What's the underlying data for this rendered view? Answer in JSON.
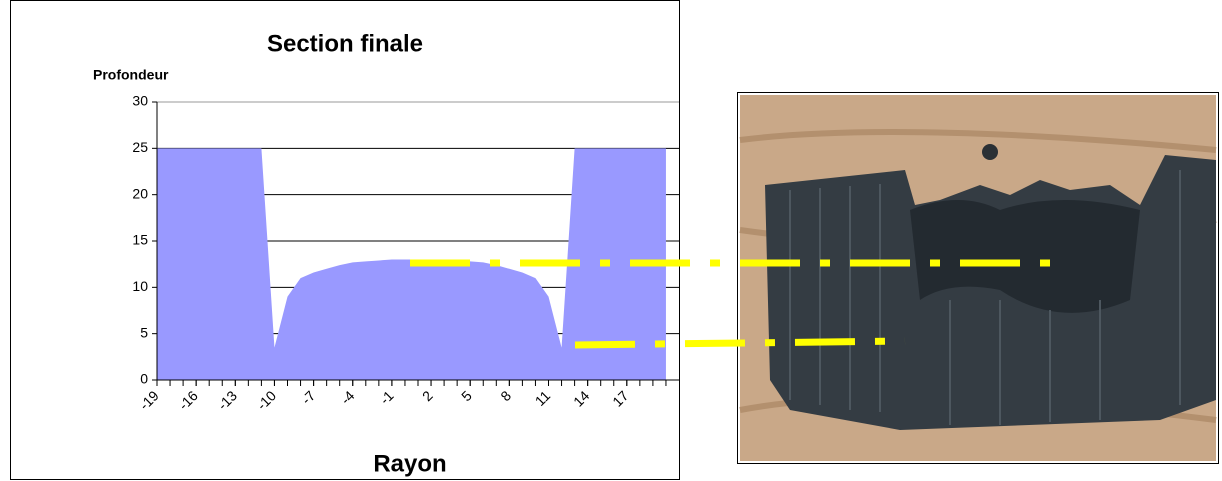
{
  "chart_data": {
    "type": "area",
    "title": "Section finale",
    "y_label": "Profondeur",
    "x_label": "Rayon",
    "x": [
      -19,
      -18,
      -17,
      -16,
      -15,
      -14,
      -13,
      -12,
      -11,
      -10,
      -9,
      -8,
      -7,
      -6,
      -5,
      -4,
      -3,
      -2,
      -1,
      0,
      1,
      2,
      3,
      4,
      5,
      6,
      7,
      8,
      9,
      10,
      11,
      12,
      13,
      14,
      15,
      16,
      17,
      18,
      19,
      20
    ],
    "values": [
      25,
      25,
      25,
      25,
      25,
      25,
      25,
      25,
      25,
      3.5,
      9,
      11,
      11.6,
      12,
      12.4,
      12.7,
      12.8,
      12.9,
      13,
      13,
      13,
      13,
      13,
      12.9,
      12.8,
      12.7,
      12.4,
      12,
      11.6,
      11,
      9,
      3.5,
      25,
      25,
      25,
      25,
      25,
      25,
      25,
      25
    ],
    "color": "#9999ff",
    "xlim": [
      -19,
      21
    ],
    "xticks": [
      -19,
      -16,
      -13,
      -10,
      -7,
      -4,
      -1,
      2,
      5,
      8,
      11,
      14,
      17
    ],
    "ylim": [
      0,
      30
    ],
    "yticks": [
      0,
      5,
      10,
      15,
      20,
      25,
      30
    ],
    "grid": true
  }
}
